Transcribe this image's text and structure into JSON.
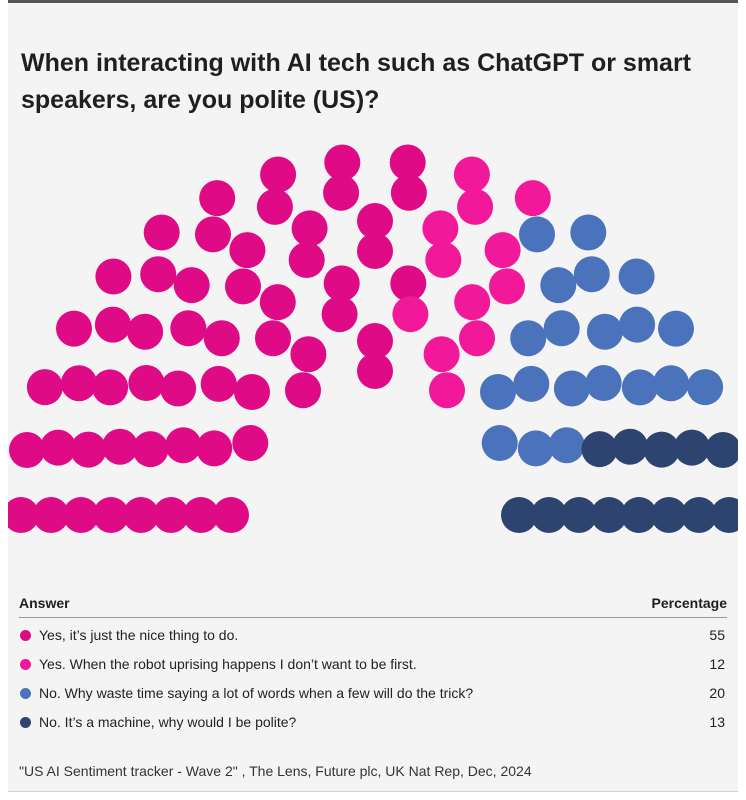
{
  "chart_data": {
    "type": "parliament",
    "title": "When interacting with AI tech such as ChatGPT or smart speakers, are you polite (US)?",
    "header": {
      "answer": "Answer",
      "percentage": "Percentage"
    },
    "series": [
      {
        "name": "Yes, it’s just the nice thing to do.",
        "value": 55,
        "color": "#df0a86"
      },
      {
        "name": "Yes. When the robot uprising happens I don’t want to be first.",
        "value": 12,
        "color": "#f1199a"
      },
      {
        "name": "No. Why waste time saying a lot of words when a few will do the trick?",
        "value": 20,
        "color": "#4a73bc"
      },
      {
        "name": "No. It’s a machine, why would I be polite?",
        "value": 13,
        "color": "#2d4470"
      }
    ],
    "total_seats": 100,
    "source": "\"US AI Sentiment tracker - Wave 2\" , The Lens, Future plc, UK Nat Rep, Dec, 2024"
  }
}
